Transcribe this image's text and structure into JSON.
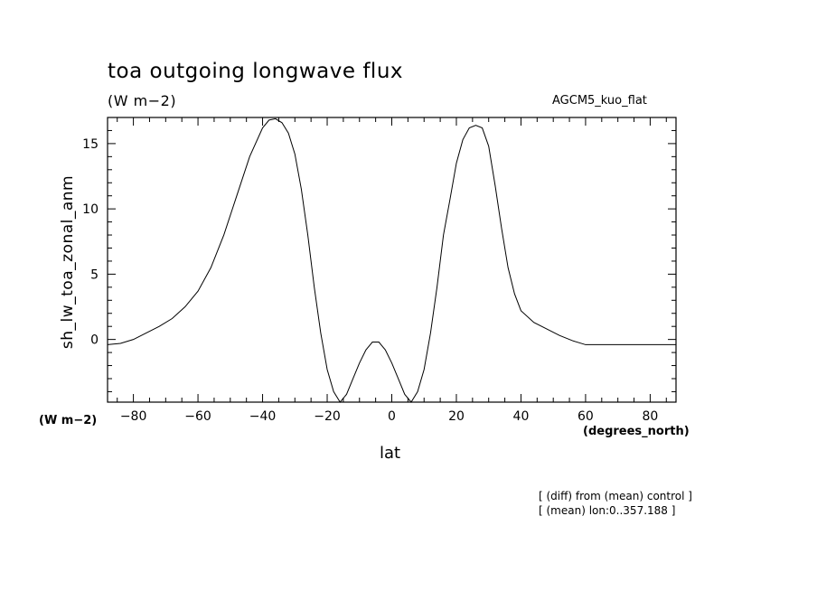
{
  "header": {
    "title": "toa outgoing longwave flux",
    "units": "(W m−2)",
    "model": "AGCM5_kuo_flat"
  },
  "footer": {
    "note_diff": "[ (diff) from (mean) control ]",
    "note_mean": "[ (mean) lon:0..357.188 ]"
  },
  "chart_data": {
    "type": "line",
    "xlabel": "lat",
    "ylabel": "sh_lw_toa_zonal_anm",
    "x_units": "(degrees_north)",
    "y_units": "(W m−2)",
    "xlim": [
      -88,
      88
    ],
    "ylim": [
      -4.8,
      17
    ],
    "x_ticks": [
      -80,
      -60,
      -40,
      -20,
      0,
      20,
      40,
      60,
      80
    ],
    "y_ticks": [
      0,
      5,
      10,
      15
    ],
    "grid": false,
    "series": [
      {
        "x": [
          -88,
          -84,
          -80,
          -76,
          -72,
          -68,
          -64,
          -60,
          -56,
          -52,
          -48,
          -44,
          -40,
          -38,
          -36,
          -34,
          -32,
          -30,
          -28,
          -26,
          -24,
          -22,
          -20,
          -18,
          -16,
          -14,
          -12,
          -10,
          -8,
          -6,
          -4,
          -2,
          0,
          2,
          4,
          6,
          8,
          10,
          12,
          14,
          16,
          18,
          20,
          22,
          24,
          26,
          28,
          30,
          32,
          34,
          36,
          38,
          40,
          44,
          48,
          52,
          56,
          60,
          64,
          68,
          72,
          76,
          80,
          84,
          88
        ],
        "y": [
          -0.4,
          -0.3,
          0.0,
          0.5,
          1.0,
          1.6,
          2.5,
          3.7,
          5.5,
          8.0,
          11.0,
          14.0,
          16.2,
          16.8,
          16.9,
          16.6,
          15.8,
          14.2,
          11.5,
          8.0,
          4.0,
          0.5,
          -2.3,
          -4.0,
          -4.8,
          -4.2,
          -3.0,
          -1.8,
          -0.8,
          -0.2,
          -0.2,
          -0.8,
          -1.8,
          -3.0,
          -4.2,
          -4.8,
          -4.0,
          -2.3,
          0.5,
          4.0,
          8.0,
          10.7,
          13.5,
          15.3,
          16.2,
          16.4,
          16.2,
          14.8,
          11.8,
          8.5,
          5.5,
          3.5,
          2.2,
          1.3,
          0.8,
          0.3,
          -0.1,
          -0.4,
          -0.4,
          -0.4,
          -0.4,
          -0.4,
          -0.4,
          -0.4,
          -0.4
        ]
      }
    ]
  }
}
